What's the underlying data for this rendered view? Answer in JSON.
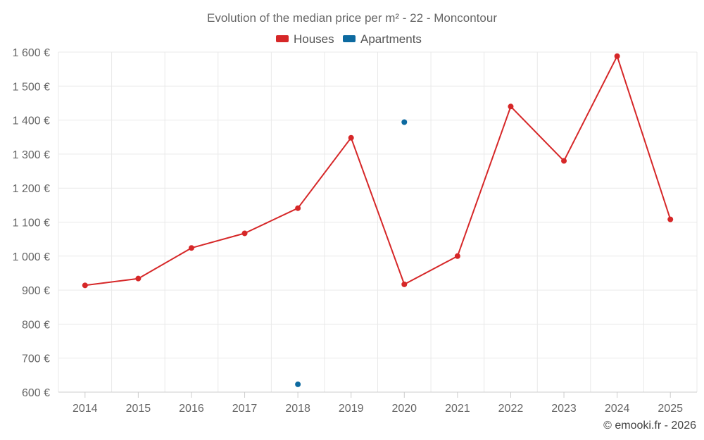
{
  "chart_data": {
    "type": "line",
    "title": "Evolution of the median price per m² - 22 - Moncontour",
    "categories": [
      "2014",
      "2015",
      "2016",
      "2017",
      "2018",
      "2019",
      "2020",
      "2021",
      "2022",
      "2023",
      "2024",
      "2025"
    ],
    "ylim": [
      600,
      1600
    ],
    "yticks": [
      600,
      700,
      800,
      900,
      1000,
      1100,
      1200,
      1300,
      1400,
      1500,
      1600
    ],
    "ytick_labels": [
      "600 €",
      "700 €",
      "800 €",
      "900 €",
      "1 000 €",
      "1 100 €",
      "1 200 €",
      "1 300 €",
      "1 400 €",
      "1 500 €",
      "1 600 €"
    ],
    "grid": true,
    "legend_position": "top-center",
    "series": [
      {
        "name": "Houses",
        "color": "#d62728",
        "style": "line-with-markers",
        "values": [
          914,
          934,
          1024,
          1067,
          1141,
          1348,
          917,
          1000,
          1440,
          1280,
          1588,
          1108
        ]
      },
      {
        "name": "Apartments",
        "color": "#0d6aa0",
        "style": "markers",
        "values": [
          null,
          null,
          null,
          null,
          623,
          null,
          1394,
          null,
          null,
          null,
          null,
          null
        ]
      }
    ]
  },
  "credit": "© emooki.fr - 2026"
}
